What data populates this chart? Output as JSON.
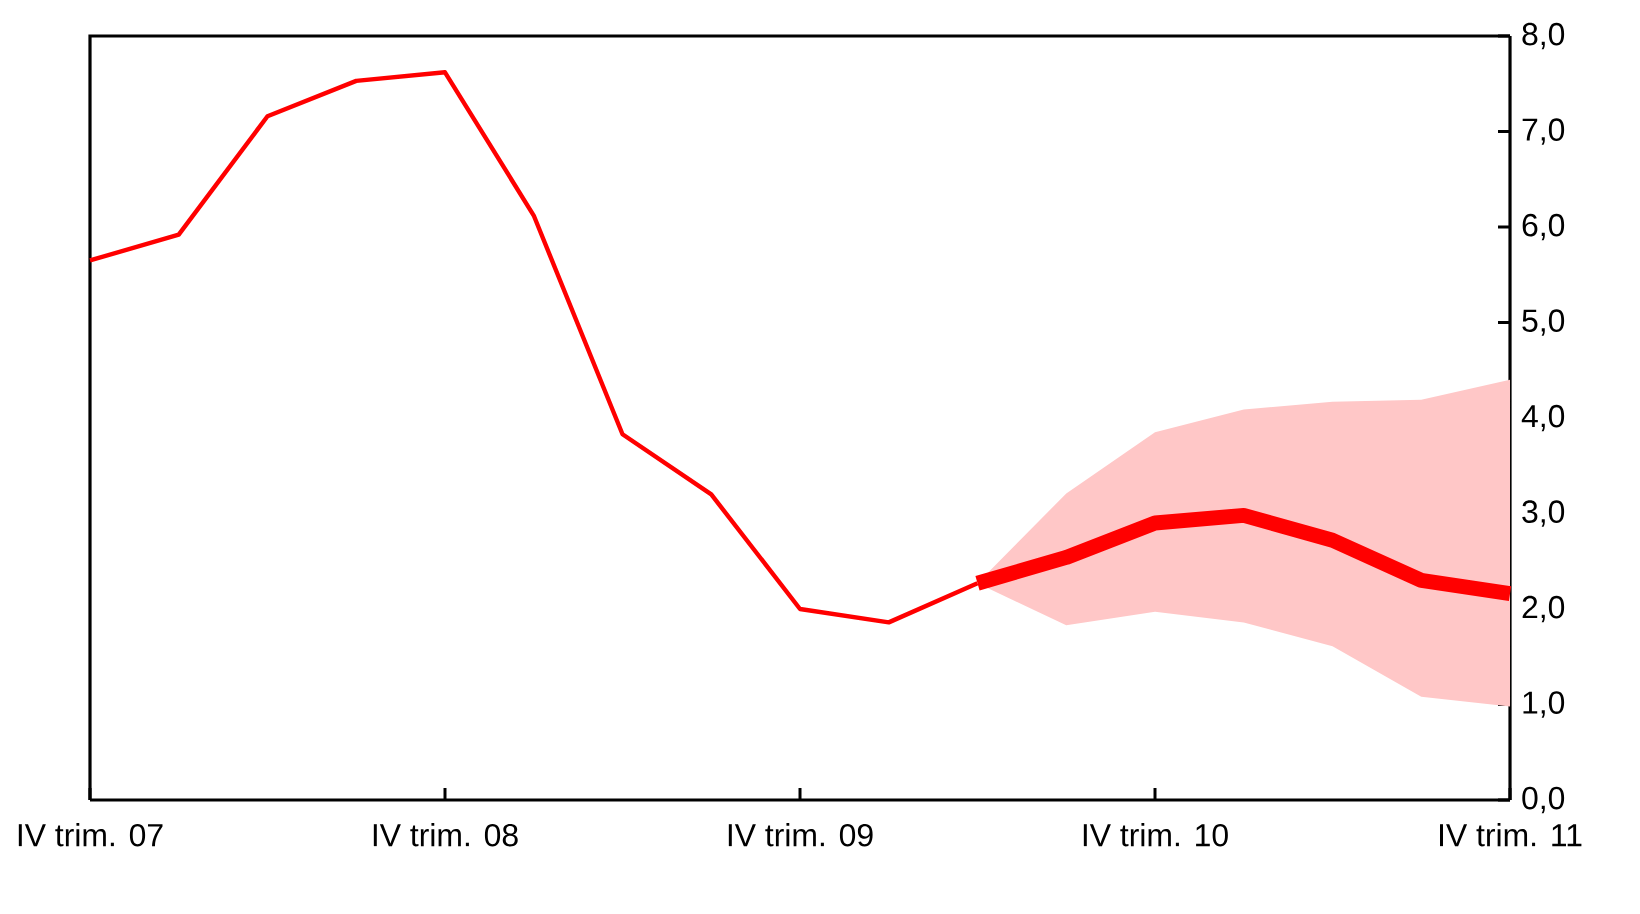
{
  "chart_data": {
    "type": "line",
    "categories": [
      "IV trim. 07",
      null,
      null,
      null,
      "IV trim. 08",
      null,
      null,
      null,
      "IV trim. 09",
      null,
      null,
      null,
      "IV trim. 10",
      null,
      null,
      null,
      "IV trim. 11"
    ],
    "series": [
      {
        "color": "#ff0000",
        "values": [
          5.65,
          5.92,
          7.16,
          7.53,
          7.62,
          6.12,
          3.83,
          3.2,
          2.0,
          1.86,
          2.27,
          null,
          null,
          null,
          null,
          null,
          null
        ]
      },
      {
        "color": "#ff0000",
        "values": [
          null,
          null,
          null,
          null,
          null,
          null,
          null,
          null,
          null,
          null,
          2.27,
          2.54,
          2.9,
          2.98,
          2.72,
          2.3,
          2.16
        ],
        "lower": [
          null,
          null,
          null,
          null,
          null,
          null,
          null,
          null,
          null,
          null,
          2.27,
          1.83,
          1.97,
          1.86,
          1.61,
          1.08,
          0.98
        ],
        "upper": [
          null,
          null,
          null,
          null,
          null,
          null,
          null,
          null,
          null,
          null,
          2.27,
          3.21,
          3.85,
          4.09,
          4.17,
          4.19,
          4.4
        ]
      }
    ],
    "ylim": [
      0,
      8
    ],
    "yticks": [
      {
        "value": 0,
        "label": "0,0"
      },
      {
        "value": 1,
        "label": "1,0"
      },
      {
        "value": 2,
        "label": "2,0"
      },
      {
        "value": 3,
        "label": "3,0"
      },
      {
        "value": 4,
        "label": "4,0"
      },
      {
        "value": 5,
        "label": "5,0"
      },
      {
        "value": 6,
        "label": "6,0"
      },
      {
        "value": 7,
        "label": "7,0"
      },
      {
        "value": 8,
        "label": "8,0"
      }
    ],
    "grid": false,
    "legend": false,
    "marker": "none",
    "line_style": "solid"
  }
}
